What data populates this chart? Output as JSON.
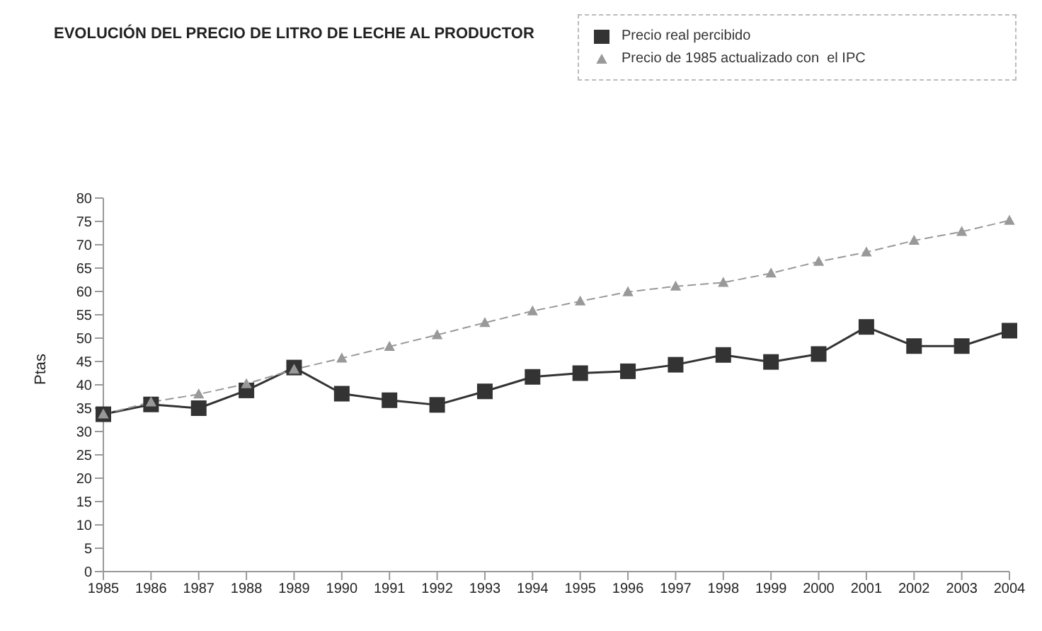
{
  "chart_data": {
    "type": "line",
    "title": "EVOLUCIÓN DEL PRECIO DE LITRO DE LECHE AL PRODUCTOR",
    "ylabel": "Ptas",
    "categories": [
      "1985",
      "1986",
      "1987",
      "1988",
      "1989",
      "1990",
      "1991",
      "1992",
      "1993",
      "1994",
      "1995",
      "1996",
      "1997",
      "1998",
      "1999",
      "2000",
      "2001",
      "2002",
      "2003",
      "2004"
    ],
    "series": [
      {
        "name": "Precio real percibido",
        "color": "#333333",
        "marker": "square",
        "line_style": "solid",
        "values": [
          33.7,
          35.8,
          35.0,
          38.8,
          43.7,
          38.1,
          36.7,
          35.7,
          38.6,
          41.7,
          42.5,
          42.9,
          44.3,
          46.4,
          44.9,
          46.6,
          52.4,
          48.3,
          48.3,
          51.6
        ]
      },
      {
        "name": "Precio de 1985 actualizado con  el IPC",
        "color": "#999999",
        "marker": "triangle",
        "line_style": "dashed",
        "values": [
          33.7,
          36.3,
          38.0,
          40.2,
          43.3,
          45.7,
          48.2,
          50.7,
          53.3,
          55.8,
          57.9,
          59.9,
          61.1,
          61.9,
          63.9,
          66.4,
          68.4,
          70.9,
          72.8,
          75.2
        ]
      }
    ],
    "ylim": [
      0,
      80
    ],
    "yticks": [
      0,
      5,
      10,
      15,
      20,
      25,
      30,
      35,
      40,
      45,
      50,
      55,
      60,
      65,
      70,
      75,
      80
    ],
    "grid": false,
    "legend": "top right"
  }
}
